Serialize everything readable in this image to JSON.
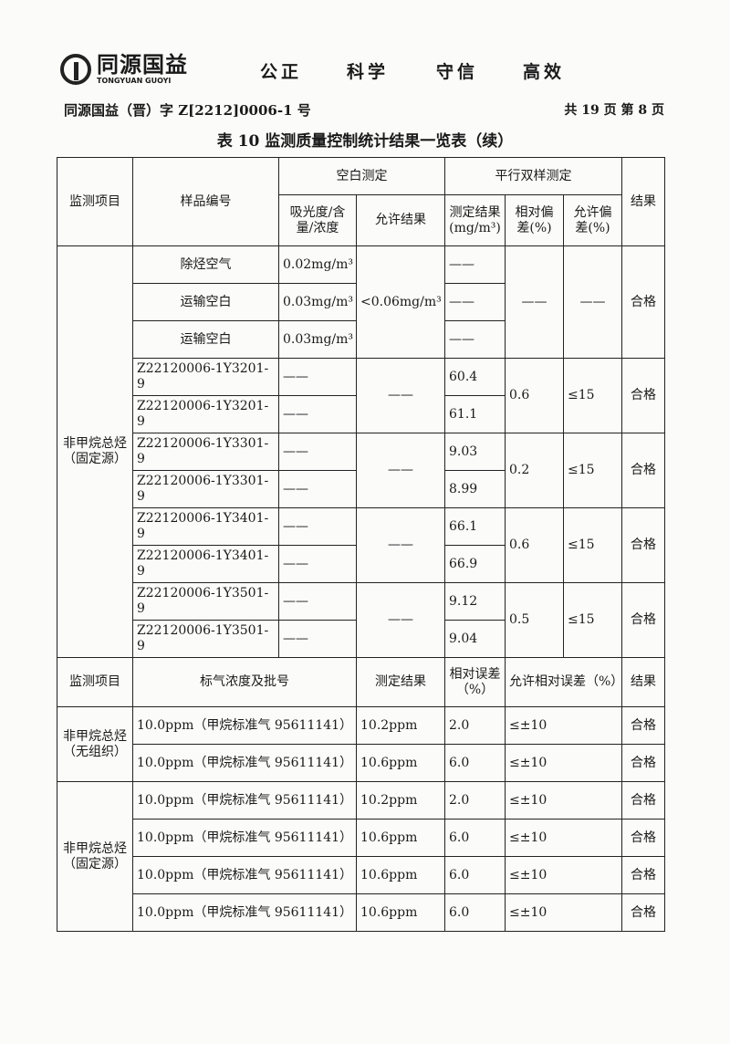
{
  "header": {
    "logo_cn": "同源国益",
    "logo_en": "TONGYUAN GUOYI",
    "motto": [
      "公正",
      "科学",
      "守信",
      "高效"
    ],
    "doc_no": "同源国益（晋）字 Z[2212]0006-1 号",
    "page_info": "共 19 页   第 8 页"
  },
  "title": "表 10 监测质量控制统计结果一览表（续）",
  "upper": {
    "headers": {
      "item": "监测项目",
      "sample": "样品编号",
      "blank": "空白测定",
      "parallel": "平行双样测定",
      "result": "结果",
      "absorbance": "吸光度/含量/浓度",
      "allowed": "允许结果",
      "measured": "测定结果(mg/m³)",
      "rel_dev": "相对偏差(%)",
      "allow_dev": "允许偏差(%)"
    },
    "item": "非甲烷总烃（固定源）",
    "blanks": {
      "rows": [
        {
          "sample": "除烃空气",
          "value": "0.02mg/m³",
          "measured": "——"
        },
        {
          "sample": "运输空白",
          "value": "0.03mg/m³",
          "measured": "——"
        },
        {
          "sample": "运输空白",
          "value": "0.03mg/m³",
          "measured": "——"
        }
      ],
      "allowed": "<0.06mg/m³",
      "rel_dev": "——",
      "allow_dev": "——",
      "result": "合格"
    },
    "pairs": [
      {
        "rows": [
          {
            "sample": "Z22120006-1Y3201-9",
            "value": "——",
            "measured": "60.4"
          },
          {
            "sample": "Z22120006-1Y3201-9",
            "value": "——",
            "measured": "61.1"
          }
        ],
        "allowed": "——",
        "rel_dev": "0.6",
        "allow_dev": "≤15",
        "result": "合格"
      },
      {
        "rows": [
          {
            "sample": "Z22120006-1Y3301-9",
            "value": "——",
            "measured": "9.03"
          },
          {
            "sample": "Z22120006-1Y3301-9",
            "value": "——",
            "measured": "8.99"
          }
        ],
        "allowed": "——",
        "rel_dev": "0.2",
        "allow_dev": "≤15",
        "result": "合格"
      },
      {
        "rows": [
          {
            "sample": "Z22120006-1Y3401-9",
            "value": "——",
            "measured": "66.1"
          },
          {
            "sample": "Z22120006-1Y3401-9",
            "value": "——",
            "measured": "66.9"
          }
        ],
        "allowed": "——",
        "rel_dev": "0.6",
        "allow_dev": "≤15",
        "result": "合格"
      },
      {
        "rows": [
          {
            "sample": "Z22120006-1Y3501-9",
            "value": "——",
            "measured": "9.12"
          },
          {
            "sample": "Z22120006-1Y3501-9",
            "value": "——",
            "measured": "9.04"
          }
        ],
        "allowed": "——",
        "rel_dev": "0.5",
        "allow_dev": "≤15",
        "result": "合格"
      }
    ]
  },
  "lower": {
    "headers": {
      "item": "监测项目",
      "std": "标气浓度及批号",
      "measured": "测定结果",
      "rel_err": "相对误差（%）",
      "allow_err": "允许相对误差（%）",
      "result": "结果"
    },
    "groups": [
      {
        "item": "非甲烷总烃（无组织）",
        "rows": [
          {
            "std": "10.0ppm（甲烷标准气 95611141）",
            "measured": "10.2ppm",
            "rel_err": "2.0",
            "allow_err": "≤±10",
            "result": "合格"
          },
          {
            "std": "10.0ppm（甲烷标准气 95611141）",
            "measured": "10.6ppm",
            "rel_err": "6.0",
            "allow_err": "≤±10",
            "result": "合格"
          }
        ]
      },
      {
        "item": "非甲烷总烃（固定源）",
        "rows": [
          {
            "std": "10.0ppm（甲烷标准气 95611141）",
            "measured": "10.2ppm",
            "rel_err": "2.0",
            "allow_err": "≤±10",
            "result": "合格"
          },
          {
            "std": "10.0ppm（甲烷标准气 95611141）",
            "measured": "10.6ppm",
            "rel_err": "6.0",
            "allow_err": "≤±10",
            "result": "合格"
          },
          {
            "std": "10.0ppm（甲烷标准气 95611141）",
            "measured": "10.6ppm",
            "rel_err": "6.0",
            "allow_err": "≤±10",
            "result": "合格"
          },
          {
            "std": "10.0ppm（甲烷标准气 95611141）",
            "measured": "10.6ppm",
            "rel_err": "6.0",
            "allow_err": "≤±10",
            "result": "合格"
          }
        ]
      }
    ]
  }
}
